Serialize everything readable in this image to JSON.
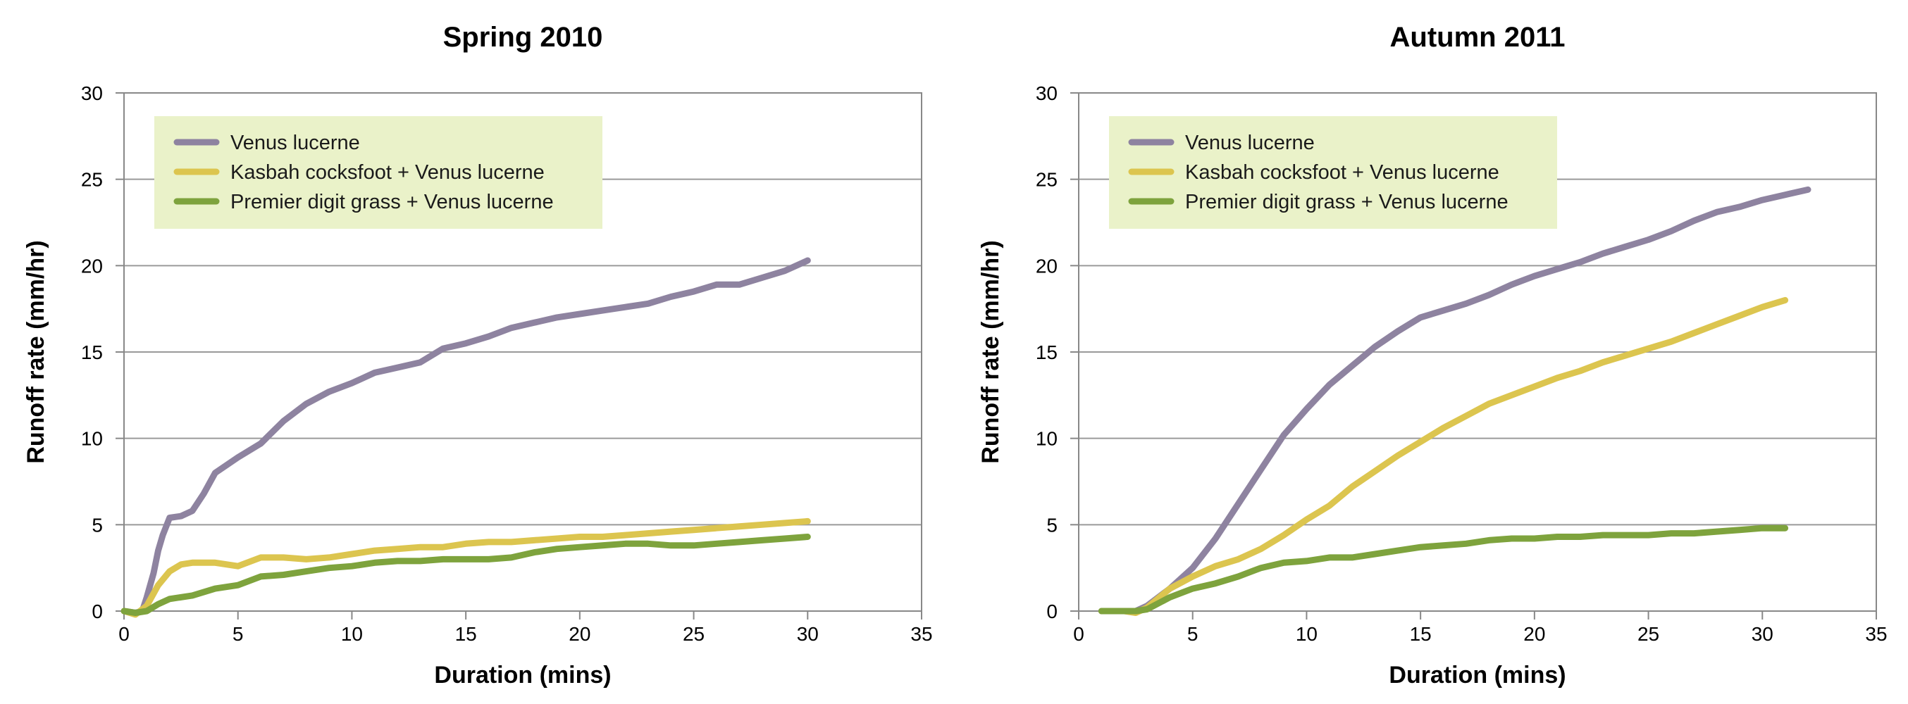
{
  "chart_data": [
    {
      "type": "line",
      "title": "Spring 2010",
      "xlabel": "Duration (mins)",
      "ylabel": "Runoff rate (mm/hr)",
      "xlim": [
        0,
        35
      ],
      "ylim": [
        0,
        30
      ],
      "xticks": [
        0,
        5,
        10,
        15,
        20,
        25,
        30,
        35
      ],
      "yticks": [
        0,
        5,
        10,
        15,
        20,
        25,
        30
      ],
      "grid": "horizontal",
      "legend_position": "top-left",
      "series": [
        {
          "name": "Venus lucerne",
          "color": "#8e83a0",
          "points": [
            [
              0,
              0
            ],
            [
              0.5,
              -0.1
            ],
            [
              0.8,
              0
            ],
            [
              1,
              0.8
            ],
            [
              1.3,
              2.2
            ],
            [
              1.5,
              3.5
            ],
            [
              1.7,
              4.4
            ],
            [
              2,
              5.4
            ],
            [
              2.5,
              5.5
            ],
            [
              3,
              5.8
            ],
            [
              3.5,
              6.8
            ],
            [
              4,
              8
            ],
            [
              5,
              8.9
            ],
            [
              6,
              9.7
            ],
            [
              7,
              11
            ],
            [
              8,
              12
            ],
            [
              9,
              12.7
            ],
            [
              10,
              13.2
            ],
            [
              11,
              13.8
            ],
            [
              12,
              14.1
            ],
            [
              13,
              14.4
            ],
            [
              14,
              15.2
            ],
            [
              15,
              15.5
            ],
            [
              16,
              15.9
            ],
            [
              17,
              16.4
            ],
            [
              18,
              16.7
            ],
            [
              19,
              17
            ],
            [
              20,
              17.2
            ],
            [
              21,
              17.4
            ],
            [
              22,
              17.6
            ],
            [
              23,
              17.8
            ],
            [
              24,
              18.2
            ],
            [
              25,
              18.5
            ],
            [
              26,
              18.9
            ],
            [
              27,
              18.9
            ],
            [
              28,
              19.3
            ],
            [
              29,
              19.7
            ],
            [
              30,
              20.3
            ]
          ]
        },
        {
          "name": "Kasbah cocksfoot + Venus lucerne",
          "color": "#dcc54f",
          "points": [
            [
              0,
              0
            ],
            [
              0.5,
              -0.2
            ],
            [
              1,
              0.3
            ],
            [
              1.5,
              1.5
            ],
            [
              2,
              2.3
            ],
            [
              2.5,
              2.7
            ],
            [
              3,
              2.8
            ],
            [
              4,
              2.8
            ],
            [
              5,
              2.6
            ],
            [
              6,
              3.1
            ],
            [
              7,
              3.1
            ],
            [
              8,
              3
            ],
            [
              9,
              3.1
            ],
            [
              10,
              3.3
            ],
            [
              11,
              3.5
            ],
            [
              12,
              3.6
            ],
            [
              13,
              3.7
            ],
            [
              14,
              3.7
            ],
            [
              15,
              3.9
            ],
            [
              16,
              4
            ],
            [
              17,
              4
            ],
            [
              18,
              4.1
            ],
            [
              19,
              4.2
            ],
            [
              20,
              4.3
            ],
            [
              21,
              4.3
            ],
            [
              22,
              4.4
            ],
            [
              23,
              4.5
            ],
            [
              24,
              4.6
            ],
            [
              25,
              4.7
            ],
            [
              26,
              4.8
            ],
            [
              27,
              4.9
            ],
            [
              28,
              5
            ],
            [
              29,
              5.1
            ],
            [
              30,
              5.2
            ]
          ]
        },
        {
          "name": "Premier digit grass + Venus lucerne",
          "color": "#7ea33d",
          "points": [
            [
              0,
              0
            ],
            [
              0.5,
              -0.1
            ],
            [
              1,
              0
            ],
            [
              1.5,
              0.4
            ],
            [
              2,
              0.7
            ],
            [
              3,
              0.9
            ],
            [
              4,
              1.3
            ],
            [
              5,
              1.5
            ],
            [
              6,
              2
            ],
            [
              7,
              2.1
            ],
            [
              8,
              2.3
            ],
            [
              9,
              2.5
            ],
            [
              10,
              2.6
            ],
            [
              11,
              2.8
            ],
            [
              12,
              2.9
            ],
            [
              13,
              2.9
            ],
            [
              14,
              3
            ],
            [
              15,
              3
            ],
            [
              16,
              3
            ],
            [
              17,
              3.1
            ],
            [
              18,
              3.4
            ],
            [
              19,
              3.6
            ],
            [
              20,
              3.7
            ],
            [
              21,
              3.8
            ],
            [
              22,
              3.9
            ],
            [
              23,
              3.9
            ],
            [
              24,
              3.8
            ],
            [
              25,
              3.8
            ],
            [
              26,
              3.9
            ],
            [
              27,
              4
            ],
            [
              28,
              4.1
            ],
            [
              29,
              4.2
            ],
            [
              30,
              4.3
            ]
          ]
        }
      ]
    },
    {
      "type": "line",
      "title": "Autumn 2011",
      "xlabel": "Duration (mins)",
      "ylabel": "Runoff rate (mm/hr)",
      "xlim": [
        0,
        35
      ],
      "ylim": [
        0,
        30
      ],
      "xticks": [
        0,
        5,
        10,
        15,
        20,
        25,
        30,
        35
      ],
      "yticks": [
        0,
        5,
        10,
        15,
        20,
        25,
        30
      ],
      "grid": "horizontal",
      "legend_position": "top-left",
      "series": [
        {
          "name": "Venus lucerne",
          "color": "#8e83a0",
          "points": [
            [
              1,
              0
            ],
            [
              2,
              0
            ],
            [
              2.5,
              0
            ],
            [
              3,
              0.3
            ],
            [
              4,
              1.3
            ],
            [
              5,
              2.5
            ],
            [
              6,
              4.2
            ],
            [
              7,
              6.2
            ],
            [
              8,
              8.2
            ],
            [
              9,
              10.2
            ],
            [
              10,
              11.7
            ],
            [
              11,
              13.1
            ],
            [
              12,
              14.2
            ],
            [
              13,
              15.3
            ],
            [
              14,
              16.2
            ],
            [
              15,
              17
            ],
            [
              16,
              17.4
            ],
            [
              17,
              17.8
            ],
            [
              18,
              18.3
            ],
            [
              19,
              18.9
            ],
            [
              20,
              19.4
            ],
            [
              21,
              19.8
            ],
            [
              22,
              20.2
            ],
            [
              23,
              20.7
            ],
            [
              24,
              21.1
            ],
            [
              25,
              21.5
            ],
            [
              26,
              22
            ],
            [
              27,
              22.6
            ],
            [
              28,
              23.1
            ],
            [
              29,
              23.4
            ],
            [
              30,
              23.8
            ],
            [
              31,
              24.1
            ],
            [
              32,
              24.4
            ]
          ]
        },
        {
          "name": "Kasbah cocksfoot + Venus lucerne",
          "color": "#dcc54f",
          "points": [
            [
              1,
              0
            ],
            [
              2,
              0
            ],
            [
              2.5,
              -0.1
            ],
            [
              3,
              0.2
            ],
            [
              4,
              1.3
            ],
            [
              5,
              2
            ],
            [
              6,
              2.6
            ],
            [
              7,
              3
            ],
            [
              8,
              3.6
            ],
            [
              9,
              4.4
            ],
            [
              10,
              5.3
            ],
            [
              11,
              6.1
            ],
            [
              12,
              7.2
            ],
            [
              13,
              8.1
            ],
            [
              14,
              9
            ],
            [
              15,
              9.8
            ],
            [
              16,
              10.6
            ],
            [
              17,
              11.3
            ],
            [
              18,
              12
            ],
            [
              19,
              12.5
            ],
            [
              20,
              13
            ],
            [
              21,
              13.5
            ],
            [
              22,
              13.9
            ],
            [
              23,
              14.4
            ],
            [
              24,
              14.8
            ],
            [
              25,
              15.2
            ],
            [
              26,
              15.6
            ],
            [
              27,
              16.1
            ],
            [
              28,
              16.6
            ],
            [
              29,
              17.1
            ],
            [
              30,
              17.6
            ],
            [
              31,
              18
            ]
          ]
        },
        {
          "name": "Premier digit grass + Venus lucerne",
          "color": "#7ea33d",
          "points": [
            [
              1,
              0
            ],
            [
              2,
              0
            ],
            [
              2.5,
              0
            ],
            [
              3,
              0.1
            ],
            [
              4,
              0.8
            ],
            [
              5,
              1.3
            ],
            [
              6,
              1.6
            ],
            [
              7,
              2
            ],
            [
              8,
              2.5
            ],
            [
              9,
              2.8
            ],
            [
              10,
              2.9
            ],
            [
              11,
              3.1
            ],
            [
              12,
              3.1
            ],
            [
              13,
              3.3
            ],
            [
              14,
              3.5
            ],
            [
              15,
              3.7
            ],
            [
              16,
              3.8
            ],
            [
              17,
              3.9
            ],
            [
              18,
              4.1
            ],
            [
              19,
              4.2
            ],
            [
              20,
              4.2
            ],
            [
              21,
              4.3
            ],
            [
              22,
              4.3
            ],
            [
              23,
              4.4
            ],
            [
              24,
              4.4
            ],
            [
              25,
              4.4
            ],
            [
              26,
              4.5
            ],
            [
              27,
              4.5
            ],
            [
              28,
              4.6
            ],
            [
              29,
              4.7
            ],
            [
              30,
              4.8
            ],
            [
              31,
              4.8
            ]
          ]
        }
      ]
    }
  ]
}
